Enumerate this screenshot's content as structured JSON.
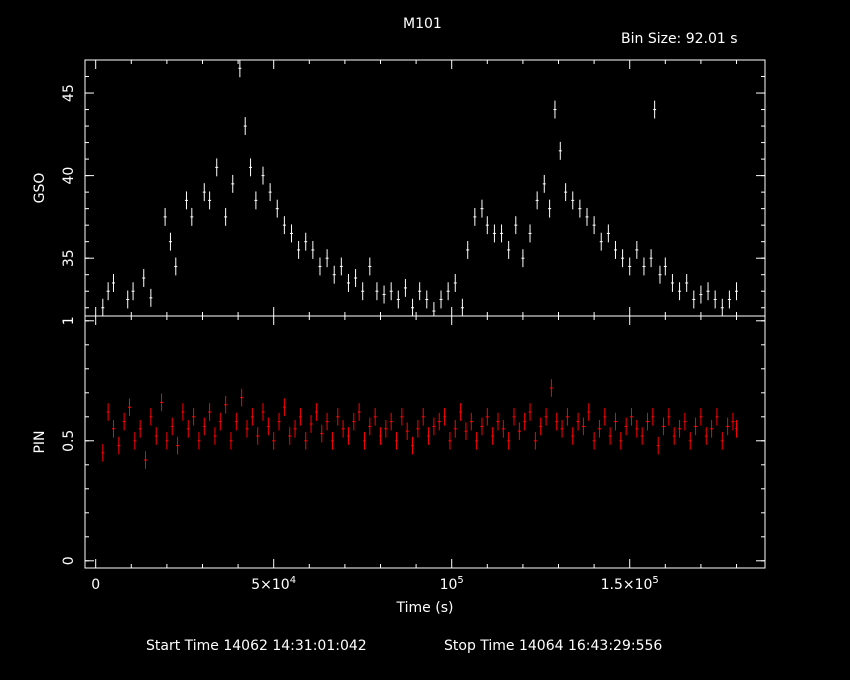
{
  "title": "M101",
  "bin_size": "Bin Size: 92.01 s",
  "start_time": "Start Time 14062 14:31:01:042",
  "stop_time": "Stop Time 14064 16:43:29:556",
  "colors": {
    "gso": "#ffffff",
    "pin": "#ff0000",
    "axes": "#ffffff",
    "background": "#000000"
  },
  "chart_data": [
    {
      "type": "scatter",
      "ylabel": "GSO",
      "ylim": [
        31.5,
        47
      ],
      "yticks": [
        35,
        40,
        45
      ],
      "yticklabels": [
        "35",
        "40",
        "45"
      ],
      "xlim": [
        -3000,
        188000
      ],
      "series": [
        {
          "x": [
            2000,
            3500,
            5000,
            9000,
            10500,
            13500,
            15500,
            19500,
            21000,
            22500,
            25500,
            27000,
            30500,
            32000,
            34000,
            36500,
            38500,
            40500,
            42000,
            43500,
            45000,
            47000,
            49000,
            51000,
            53000,
            55000,
            57000,
            59000,
            61000,
            63000,
            65000,
            67000,
            69000,
            71000,
            73000,
            75000,
            77000,
            79000,
            81000,
            83000,
            85000,
            87000,
            89000,
            91000,
            93000,
            95000,
            97000,
            99000,
            101000,
            103000,
            104500,
            106500,
            108500,
            110000,
            112000,
            114000,
            116000,
            118000,
            120000,
            122000,
            124000,
            126000,
            127500,
            129000,
            130500,
            132000,
            134000,
            136000,
            138000,
            140000,
            142000,
            144000,
            146000,
            148000,
            150000,
            152000,
            154000,
            156000,
            157000,
            158500,
            160000,
            162000,
            164000,
            166000,
            168000,
            170000,
            172000,
            174000,
            176000,
            178000,
            180000
          ],
          "values": [
            32.0,
            33.0,
            33.5,
            32.5,
            33.0,
            33.8,
            32.6,
            37.5,
            36.0,
            34.5,
            38.5,
            37.5,
            39.0,
            38.5,
            40.5,
            37.5,
            39.5,
            46.5,
            43.0,
            40.5,
            38.5,
            40.0,
            39.0,
            38.0,
            37.0,
            36.5,
            35.5,
            36.0,
            35.5,
            34.5,
            35.0,
            34.0,
            34.5,
            33.5,
            33.8,
            33.0,
            34.5,
            33.0,
            32.8,
            33.0,
            32.5,
            33.2,
            32.0,
            33.0,
            32.5,
            31.8,
            32.5,
            33.0,
            33.5,
            32.0,
            35.5,
            37.5,
            38.0,
            37.0,
            36.5,
            36.5,
            35.5,
            37.0,
            35.0,
            36.5,
            38.5,
            39.5,
            38.0,
            44.0,
            41.5,
            39.0,
            38.5,
            38.0,
            37.5,
            37.0,
            36.0,
            36.5,
            35.5,
            35.0,
            34.5,
            35.5,
            34.5,
            35.0,
            44.0,
            34.0,
            34.5,
            33.5,
            33.0,
            33.5,
            32.5,
            32.8,
            33.0,
            32.5,
            32.0,
            32.5,
            33.0
          ]
        }
      ]
    },
    {
      "type": "scatter",
      "ylabel": "PIN",
      "xlabel": "Time (s)",
      "ylim": [
        -0.03,
        1.02
      ],
      "yticks": [
        0,
        0.5,
        1
      ],
      "yticklabels": [
        "0",
        "0.5",
        "1"
      ],
      "xlim": [
        -3000,
        188000
      ],
      "xticks": [
        0,
        50000,
        100000,
        150000
      ],
      "xticklabels": [
        {
          "base": "0",
          "sup": ""
        },
        {
          "base": "5×10",
          "sup": "4"
        },
        {
          "base": "10",
          "sup": "5"
        },
        {
          "base": "1.5×10",
          "sup": "5"
        }
      ],
      "series": [
        {
          "x": [
            2000,
            3500,
            5000,
            6500,
            8000,
            9500,
            11000,
            12500,
            14000,
            15500,
            17000,
            18500,
            20000,
            21500,
            23000,
            24500,
            26000,
            27500,
            29000,
            30500,
            32000,
            33500,
            35000,
            36500,
            38000,
            39500,
            41000,
            42500,
            44000,
            45500,
            47000,
            48500,
            50000,
            51500,
            53000,
            54500,
            56000,
            57500,
            59000,
            60500,
            62000,
            63500,
            65000,
            66500,
            68000,
            69500,
            71000,
            72500,
            74000,
            75500,
            77000,
            78500,
            80000,
            81500,
            83000,
            84500,
            86000,
            87500,
            89000,
            90500,
            92000,
            93500,
            95000,
            96500,
            98000,
            99500,
            101000,
            102500,
            104000,
            105500,
            107000,
            108500,
            110000,
            111500,
            113000,
            114500,
            116000,
            117500,
            119000,
            120500,
            122000,
            123500,
            125000,
            126500,
            128000,
            129500,
            131000,
            132500,
            134000,
            135500,
            137000,
            138500,
            140000,
            141500,
            143000,
            144500,
            146000,
            147500,
            149000,
            150500,
            152000,
            153500,
            155000,
            156500,
            158000,
            159500,
            161000,
            162500,
            164000,
            165500,
            167000,
            168500,
            170000,
            171500,
            173000,
            174500,
            176000,
            177500,
            179000,
            180000
          ],
          "values": [
            0.45,
            0.62,
            0.55,
            0.48,
            0.58,
            0.64,
            0.5,
            0.55,
            0.42,
            0.6,
            0.52,
            0.66,
            0.5,
            0.56,
            0.48,
            0.62,
            0.55,
            0.6,
            0.5,
            0.56,
            0.62,
            0.52,
            0.58,
            0.65,
            0.5,
            0.58,
            0.68,
            0.55,
            0.6,
            0.52,
            0.62,
            0.56,
            0.5,
            0.58,
            0.64,
            0.52,
            0.55,
            0.6,
            0.5,
            0.57,
            0.62,
            0.53,
            0.58,
            0.5,
            0.6,
            0.55,
            0.52,
            0.58,
            0.62,
            0.5,
            0.56,
            0.6,
            0.52,
            0.55,
            0.58,
            0.5,
            0.6,
            0.54,
            0.48,
            0.55,
            0.6,
            0.52,
            0.56,
            0.58,
            0.6,
            0.5,
            0.55,
            0.62,
            0.54,
            0.58,
            0.5,
            0.56,
            0.6,
            0.52,
            0.58,
            0.55,
            0.5,
            0.6,
            0.54,
            0.58,
            0.62,
            0.5,
            0.56,
            0.6,
            0.72,
            0.58,
            0.55,
            0.6,
            0.52,
            0.58,
            0.56,
            0.62,
            0.5,
            0.55,
            0.6,
            0.52,
            0.58,
            0.5,
            0.56,
            0.6,
            0.55,
            0.52,
            0.58,
            0.6,
            0.48,
            0.56,
            0.6,
            0.52,
            0.55,
            0.58,
            0.5,
            0.56,
            0.6,
            0.52,
            0.55,
            0.6,
            0.5,
            0.56,
            0.58,
            0.55
          ]
        }
      ]
    }
  ]
}
